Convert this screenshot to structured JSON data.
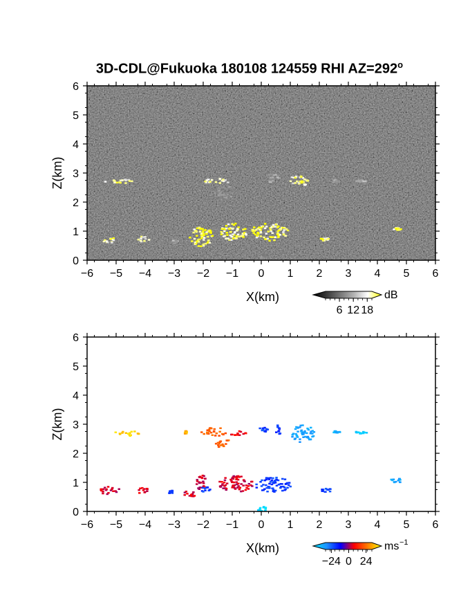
{
  "title": "3D-CDL@Fukuoka 180108 124559 RHI AZ=292",
  "title_superscript": "o",
  "chart_data": [
    {
      "type": "heatmap",
      "panel": "top",
      "variable": "signal intensity",
      "xlabel": "X(km)",
      "ylabel": "Z(km)",
      "xlim": [
        -6,
        6
      ],
      "ylim": [
        0,
        6
      ],
      "xticks": [
        -6,
        -5,
        -4,
        -3,
        -2,
        -1,
        0,
        1,
        2,
        3,
        4,
        5,
        6
      ],
      "yticks": [
        0,
        1,
        2,
        3,
        4,
        5,
        6
      ],
      "background": "noise",
      "colorbar": {
        "unit": "dB",
        "ticks": [
          6,
          12,
          18
        ],
        "colors": [
          "#000000",
          "#3a3a3a",
          "#777777",
          "#b4b4b4",
          "#ffffff",
          "#ffff00"
        ]
      },
      "features": [
        {
          "x": [
            -5.5,
            -4.4
          ],
          "z": [
            2.67,
            2.82
          ],
          "level": 18
        },
        {
          "x": [
            -2.1,
            -1.1
          ],
          "z": [
            2.66,
            2.84
          ],
          "level": 18
        },
        {
          "x": [
            -1.7,
            -0.9
          ],
          "z": [
            2.1,
            2.6
          ],
          "level": 10
        },
        {
          "x": [
            0.1,
            0.6
          ],
          "z": [
            2.7,
            3.0
          ],
          "level": 12
        },
        {
          "x": [
            0.9,
            1.6
          ],
          "z": [
            2.55,
            2.95
          ],
          "level": 18
        },
        {
          "x": [
            2.4,
            2.7
          ],
          "z": [
            2.7,
            2.8
          ],
          "level": 12
        },
        {
          "x": [
            3.2,
            3.6
          ],
          "z": [
            2.7,
            2.8
          ],
          "level": 12
        },
        {
          "x": [
            -5.5,
            -5.1
          ],
          "z": [
            0.6,
            0.85
          ],
          "level": 18
        },
        {
          "x": [
            -4.3,
            -3.9
          ],
          "z": [
            0.65,
            0.85
          ],
          "level": 18
        },
        {
          "x": [
            -3.1,
            -2.9
          ],
          "z": [
            0.6,
            0.75
          ],
          "level": 12
        },
        {
          "x": [
            -2.5,
            -1.7
          ],
          "z": [
            0.5,
            1.2
          ],
          "level": 20
        },
        {
          "x": [
            -1.5,
            -0.5
          ],
          "z": [
            0.7,
            1.3
          ],
          "level": 20
        },
        {
          "x": [
            -0.4,
            0.9
          ],
          "z": [
            0.7,
            1.3
          ],
          "level": 20
        },
        {
          "x": [
            2.0,
            2.3
          ],
          "z": [
            0.7,
            0.8
          ],
          "level": 20
        },
        {
          "x": [
            4.5,
            4.8
          ],
          "z": [
            1.05,
            1.15
          ],
          "level": 20
        },
        {
          "x": [
            -0.1,
            0.1
          ],
          "z": [
            0.05,
            0.25
          ],
          "level": 10
        }
      ]
    },
    {
      "type": "heatmap",
      "panel": "bottom",
      "variable": "velocity",
      "xlabel": "X(km)",
      "ylabel": "Z(km)",
      "xlim": [
        -6,
        6
      ],
      "ylim": [
        0,
        6
      ],
      "xticks": [
        -6,
        -5,
        -4,
        -3,
        -2,
        -1,
        0,
        1,
        2,
        3,
        4,
        5,
        6
      ],
      "yticks": [
        0,
        1,
        2,
        3,
        4,
        5,
        6
      ],
      "colorbar": {
        "unit": "ms",
        "unit_superscript": "-1",
        "ticks": [
          -24,
          0,
          24
        ],
        "colors": [
          "#00e5ff",
          "#1e90ff",
          "#0000ff",
          "#ff0000",
          "#ff7f00",
          "#ffff00"
        ]
      },
      "features": [
        {
          "x": [
            -5.1,
            -4.2
          ],
          "z": [
            2.62,
            2.82
          ],
          "velocity": 28
        },
        {
          "x": [
            -2.7,
            -2.6
          ],
          "z": [
            2.7,
            2.8
          ],
          "velocity": 24
        },
        {
          "x": [
            -2.1,
            -1.2
          ],
          "z": [
            2.62,
            2.92
          ],
          "velocity": 16
        },
        {
          "x": [
            -1.2,
            -0.5
          ],
          "z": [
            2.65,
            2.8
          ],
          "velocity": 6
        },
        {
          "x": [
            -1.6,
            -1.0
          ],
          "z": [
            2.2,
            2.5
          ],
          "velocity": 16
        },
        {
          "x": [
            -0.1,
            0.2
          ],
          "z": [
            2.75,
            2.95
          ],
          "velocity": -12
        },
        {
          "x": [
            0.4,
            0.65
          ],
          "z": [
            2.65,
            3.0
          ],
          "velocity": -10
        },
        {
          "x": [
            1.0,
            1.8
          ],
          "z": [
            2.4,
            3.0
          ],
          "velocity": -22
        },
        {
          "x": [
            2.4,
            2.7
          ],
          "z": [
            2.7,
            2.8
          ],
          "velocity": -24
        },
        {
          "x": [
            3.2,
            3.6
          ],
          "z": [
            2.7,
            2.8
          ],
          "velocity": -28
        },
        {
          "x": [
            -5.6,
            -4.9
          ],
          "z": [
            0.6,
            0.88
          ],
          "velocity": 4
        },
        {
          "x": [
            -4.4,
            -3.9
          ],
          "z": [
            0.62,
            0.85
          ],
          "velocity": 4
        },
        {
          "x": [
            -3.25,
            -3.05
          ],
          "z": [
            0.62,
            0.75
          ],
          "velocity": -10
        },
        {
          "x": [
            -2.7,
            -2.3
          ],
          "z": [
            0.5,
            0.75
          ],
          "velocity": 4
        },
        {
          "x": [
            -2.3,
            -1.9
          ],
          "z": [
            0.7,
            1.3
          ],
          "velocity": 4
        },
        {
          "x": [
            -2.15,
            -1.8
          ],
          "z": [
            0.7,
            0.9
          ],
          "velocity": -12
        },
        {
          "x": [
            -1.5,
            -0.3
          ],
          "z": [
            0.7,
            1.25
          ],
          "velocity": 4
        },
        {
          "x": [
            -0.3,
            1.0
          ],
          "z": [
            0.7,
            1.2
          ],
          "velocity": -12
        },
        {
          "x": [
            2.0,
            2.4
          ],
          "z": [
            0.7,
            0.82
          ],
          "velocity": -12
        },
        {
          "x": [
            4.4,
            4.8
          ],
          "z": [
            0.98,
            1.18
          ],
          "velocity": -22
        },
        {
          "x": [
            -0.15,
            0.15
          ],
          "z": [
            0.0,
            0.2
          ],
          "velocity": -30
        }
      ]
    }
  ]
}
